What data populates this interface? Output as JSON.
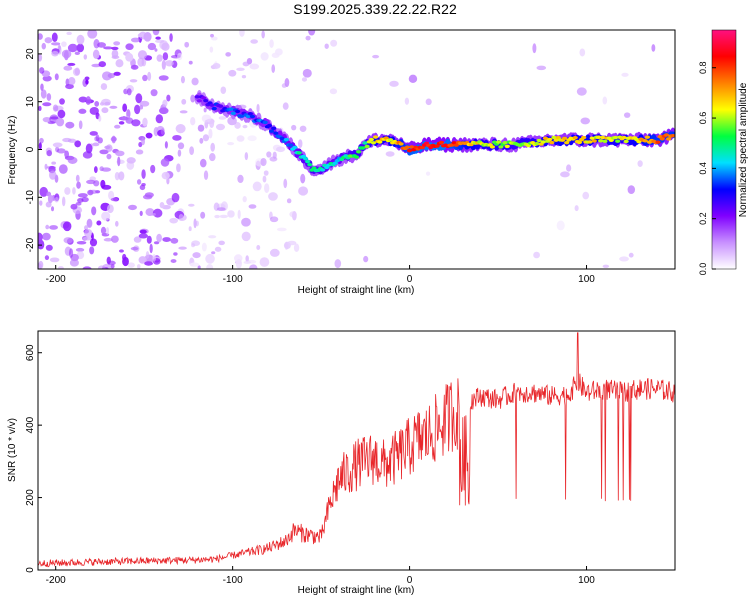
{
  "title": "S199.2025.339.22.22.R22",
  "chart_data": [
    {
      "type": "heatmap",
      "xlabel": "Height of straight line (km)",
      "ylabel": "Frequency (Hz)",
      "xlim": [
        -210,
        150
      ],
      "ylim": [
        -25,
        25
      ],
      "xticks": [
        -200,
        -100,
        0,
        100
      ],
      "yticks": [
        -20,
        -10,
        0,
        10,
        20
      ],
      "colorbar": {
        "label": "Normalized spectral amplitude",
        "range": [
          0.0,
          0.95
        ],
        "ticks": [
          "0.0",
          "0.2",
          "0.4",
          "0.6",
          "0.8"
        ],
        "colors": [
          "#ffffff",
          "#c890ff",
          "#8000ff",
          "#0000ff",
          "#00e0ff",
          "#00ff40",
          "#ffff00",
          "#ff8000",
          "#ff0000",
          "#ff1080"
        ]
      },
      "ridge": {
        "x": [
          -120,
          -110,
          -100,
          -90,
          -80,
          -70,
          -60,
          -55,
          -50,
          -40,
          -30,
          -25,
          -20,
          -10,
          0,
          10,
          20,
          40,
          60,
          80,
          100,
          120,
          140,
          150
        ],
        "frequency": [
          11,
          9,
          8,
          7,
          5,
          2,
          -2,
          -4,
          -4,
          -2,
          -1,
          1,
          2,
          2,
          0,
          1,
          1,
          1,
          1,
          2,
          2,
          2,
          2,
          3
        ],
        "amplitude": [
          0.25,
          0.3,
          0.35,
          0.35,
          0.35,
          0.4,
          0.5,
          0.55,
          0.5,
          0.45,
          0.6,
          0.55,
          0.7,
          0.7,
          0.85,
          0.9,
          0.9,
          0.65,
          0.6,
          0.7,
          0.7,
          0.65,
          0.8,
          0.8
        ]
      }
    },
    {
      "type": "line",
      "xlabel": "Height of straight line (km)",
      "ylabel": "SNR (10 * v/v)",
      "xlim": [
        -210,
        150
      ],
      "ylim": [
        0,
        660
      ],
      "xticks": [
        -200,
        -100,
        0,
        100
      ],
      "yticks": [
        0,
        200,
        400,
        600
      ],
      "color": "#e8262a",
      "series": [
        {
          "x": [
            -210,
            -180,
            -150,
            -120,
            -110,
            -100,
            -90,
            -80,
            -70,
            -65,
            -60,
            -50,
            -45,
            -40,
            -35,
            -30,
            -25,
            -20,
            -15,
            -10,
            -5,
            0,
            5,
            10,
            15,
            20,
            25,
            28,
            30,
            32,
            35,
            40,
            50,
            60,
            70,
            80,
            90,
            95,
            100,
            110,
            120,
            130,
            140,
            150
          ],
          "y": [
            18,
            22,
            25,
            28,
            30,
            40,
            50,
            60,
            80,
            110,
            100,
            90,
            180,
            250,
            270,
            290,
            300,
            310,
            290,
            300,
            320,
            340,
            360,
            370,
            390,
            410,
            440,
            430,
            250,
            450,
            470,
            480,
            470,
            490,
            490,
            480,
            485,
            520,
            490,
            500,
            490,
            500,
            500,
            490
          ]
        }
      ]
    }
  ]
}
